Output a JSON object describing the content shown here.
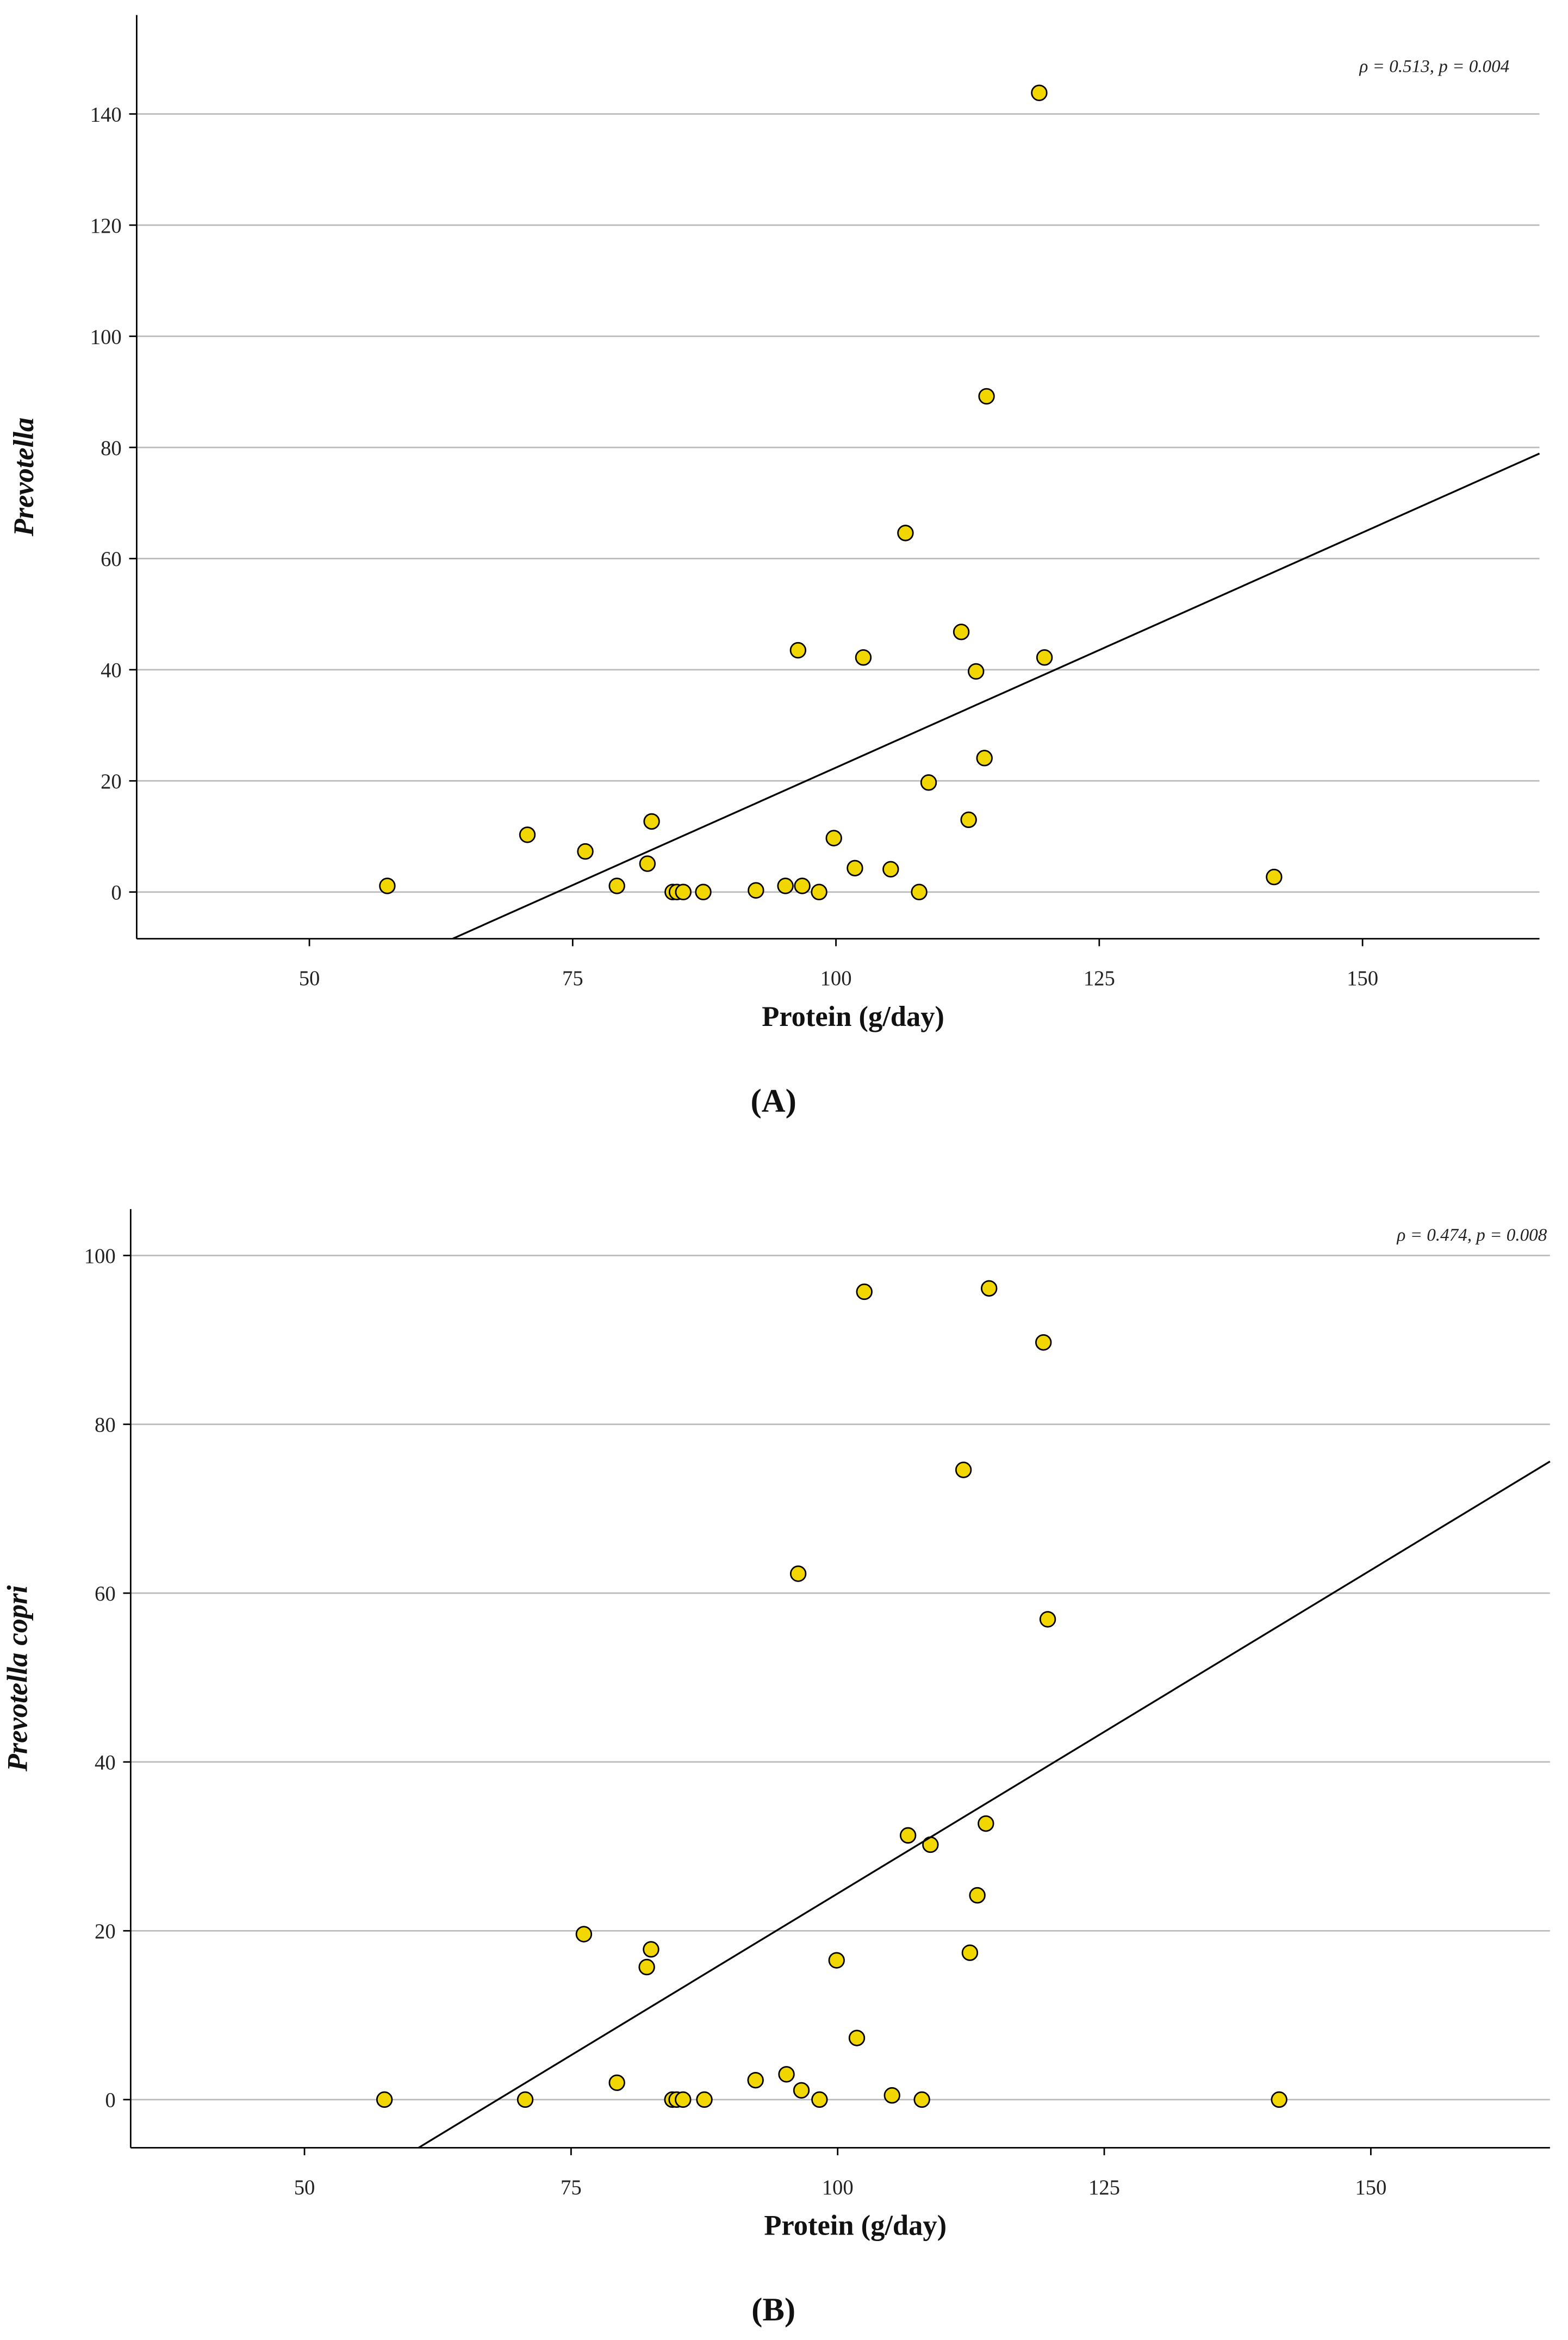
{
  "chart_data": [
    {
      "type": "scatter",
      "panel_label": "(A)",
      "x_label": "Protein (g/day)",
      "y_label": "Prevotella",
      "annotation": "ρ = 0.513, p = 0.004",
      "color": "#f2d600",
      "grid": true,
      "x": [
        57.4,
        70.7,
        76.2,
        79.2,
        82.1,
        82.5,
        84.5,
        84.9,
        85.5,
        87.4,
        92.4,
        95.2,
        96.8,
        96.4,
        98.4,
        99.8,
        101.8,
        102.6,
        105.2,
        106.6,
        107.9,
        108.8,
        111.9,
        112.6,
        113.3,
        114.1,
        114.3,
        119.3,
        119.8,
        141.6
      ],
      "y": [
        1.1,
        10.3,
        7.3,
        1.1,
        5.1,
        12.7,
        0,
        0,
        0,
        0,
        0.3,
        1.1,
        1.1,
        43.5,
        0,
        9.7,
        4.3,
        42.2,
        4.1,
        64.6,
        0,
        19.7,
        46.8,
        13.0,
        39.7,
        24.1,
        89.2,
        143.8,
        42.2,
        2.7
      ],
      "fit_line": {
        "x": [
          63.6,
          166.8
        ],
        "y": [
          -8.4,
          78.9
        ]
      },
      "xlim": [
        33.6,
        166.8
      ],
      "ylim": [
        -8.4,
        157.8
      ],
      "xticks": [
        50,
        75,
        100,
        125,
        150
      ],
      "yticks": [
        0,
        20,
        40,
        60,
        80,
        100,
        120,
        140
      ]
    },
    {
      "type": "scatter",
      "panel_label": "(B)",
      "x_label": "Protein (g/day)",
      "y_label": "Prevotella copri",
      "annotation": "ρ = 0.474, p = 0.008",
      "color": "#f2d600",
      "grid": true,
      "x": [
        57.5,
        70.7,
        76.2,
        79.3,
        82.1,
        82.5,
        84.5,
        84.9,
        85.5,
        87.5,
        92.3,
        95.2,
        96.6,
        96.3,
        98.3,
        99.9,
        101.8,
        102.5,
        105.1,
        106.6,
        107.9,
        108.7,
        111.8,
        112.4,
        113.1,
        113.9,
        114.2,
        119.3,
        119.7,
        141.4
      ],
      "y": [
        0,
        0,
        19.6,
        2.0,
        15.7,
        17.8,
        0,
        0,
        0,
        0,
        2.3,
        3.0,
        1.1,
        62.3,
        0,
        16.5,
        7.3,
        95.7,
        0.5,
        31.3,
        0,
        30.2,
        74.6,
        17.4,
        24.2,
        32.7,
        96.1,
        89.7,
        56.9,
        0
      ],
      "fit_line": {
        "x": [
          60.7,
          166.8
        ],
        "y": [
          -5.7,
          75.6
        ]
      },
      "xlim": [
        33.7,
        166.8
      ],
      "ylim": [
        -5.7,
        105.5
      ],
      "xticks": [
        50,
        75,
        100,
        125,
        150
      ],
      "yticks": [
        0,
        20,
        40,
        60,
        80,
        100
      ]
    }
  ]
}
